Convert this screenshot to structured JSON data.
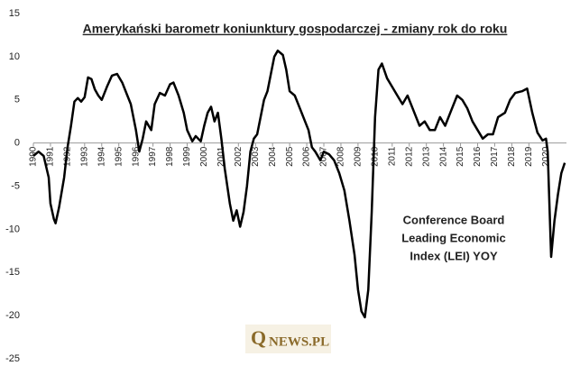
{
  "chart_data": {
    "type": "line",
    "title": "Amerykański barometr koniunktury gospodarczej - zmiany rok do roku",
    "annotation": [
      "Conference Board",
      "Leading Economic",
      "Index (LEI) YOY"
    ],
    "watermark": [
      "Q",
      "NEWS.PL"
    ],
    "color": "#000000",
    "x": [
      1990.0,
      1990.3,
      1990.6,
      1990.9,
      1991.0,
      1991.2,
      1991.3,
      1991.5,
      1991.8,
      1992.0,
      1992.2,
      1992.4,
      1992.6,
      1992.8,
      1993.0,
      1993.2,
      1993.4,
      1993.6,
      1993.8,
      1994.0,
      1994.3,
      1994.6,
      1994.9,
      1995.2,
      1995.5,
      1995.7,
      1996.0,
      1996.2,
      1996.4,
      1996.6,
      1996.9,
      1997.1,
      1997.4,
      1997.7,
      1998.0,
      1998.2,
      1998.5,
      1998.8,
      1999.0,
      1999.3,
      1999.5,
      1999.8,
      2000.0,
      2000.2,
      2000.4,
      2000.6,
      2000.8,
      2001.0,
      2001.2,
      2001.5,
      2001.7,
      2001.9,
      2002.1,
      2002.3,
      2002.5,
      2002.7,
      2002.9,
      2003.1,
      2003.3,
      2003.5,
      2003.7,
      2003.9,
      2004.1,
      2004.3,
      2004.6,
      2004.8,
      2005.0,
      2005.3,
      2005.6,
      2005.8,
      2006.1,
      2006.3,
      2006.5,
      2006.8,
      2007.0,
      2007.3,
      2007.6,
      2007.9,
      2008.2,
      2008.5,
      2008.8,
      2009.0,
      2009.2,
      2009.4,
      2009.6,
      2009.8,
      2010.0,
      2010.2,
      2010.4,
      2010.7,
      2011.0,
      2011.3,
      2011.6,
      2011.9,
      2012.2,
      2012.6,
      2012.9,
      2013.2,
      2013.5,
      2013.8,
      2014.1,
      2014.4,
      2014.8,
      2015.1,
      2015.4,
      2015.7,
      2016.0,
      2016.3,
      2016.6,
      2016.9,
      2017.2,
      2017.6,
      2017.9,
      2018.2,
      2018.6,
      2018.9,
      2019.2,
      2019.5,
      2019.8,
      2020.0,
      2020.1,
      2020.3,
      2020.5,
      2020.7,
      2020.9,
      2021.1
    ],
    "values": [
      -1.5,
      -1.0,
      -1.5,
      -4,
      -7,
      -8.8,
      -9.3,
      -7.5,
      -4,
      -0.5,
      2,
      4.8,
      5.2,
      4.8,
      5.3,
      7.6,
      7.4,
      6.2,
      5.5,
      5,
      6.5,
      7.8,
      8.0,
      7,
      5.5,
      4.5,
      1.5,
      -1.0,
      0.5,
      2.5,
      1.5,
      4.5,
      5.8,
      5.5,
      6.8,
      7.0,
      5.5,
      3.5,
      1.5,
      0.2,
      0.8,
      0.2,
      2.0,
      3.5,
      4.2,
      2.5,
      3.5,
      0.5,
      -3,
      -7,
      -9,
      -7.8,
      -9.7,
      -8,
      -5,
      -1,
      0.5,
      1,
      3,
      5,
      6,
      8,
      10,
      10.7,
      10.2,
      8.5,
      6,
      5.5,
      4.0,
      3,
      1.5,
      -0.5,
      -1.0,
      -2.0,
      -1.0,
      -1.3,
      -2.0,
      -3.5,
      -5.5,
      -9,
      -13,
      -17,
      -19.5,
      -20.2,
      -17,
      -8,
      3,
      8.5,
      9.2,
      7.5,
      6.5,
      5.5,
      4.5,
      5.5,
      4,
      2,
      2.5,
      1.5,
      1.5,
      3,
      2,
      3.5,
      5.5,
      5,
      4,
      2.5,
      1.5,
      0.5,
      1,
      1,
      3,
      3.5,
      5,
      5.8,
      6,
      6.3,
      3.5,
      1.2,
      0.3,
      0.5,
      -1,
      -13.2,
      -9,
      -6,
      -3.5,
      -2.3
    ],
    "xlim": [
      1990,
      2021.2
    ],
    "xticks": [
      1990,
      1991,
      1992,
      1993,
      1994,
      1995,
      1996,
      1997,
      1998,
      1999,
      2000,
      2001,
      2002,
      2003,
      2004,
      2005,
      2006,
      2007,
      2008,
      2009,
      2010,
      2011,
      2012,
      2013,
      2014,
      2015,
      2016,
      2017,
      2018,
      2019,
      2020
    ],
    "ylim": [
      -25,
      15
    ],
    "yticks": [
      15,
      10,
      5,
      0,
      -5,
      -10,
      -15,
      -20,
      -25
    ],
    "grid": false
  }
}
